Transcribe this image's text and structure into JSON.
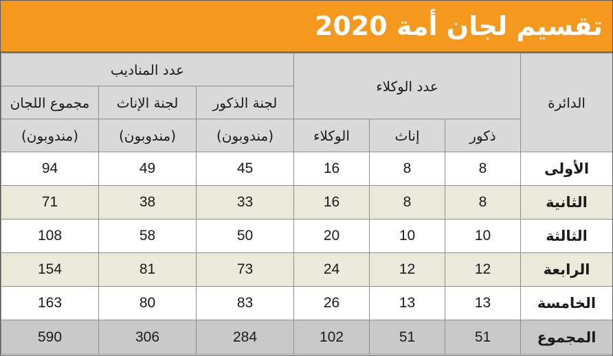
{
  "title": "تقسيم لجان أمة 2020",
  "headers": {
    "district": "الدائرة",
    "agents_group": "عدد الوكلاء",
    "delegates_group": "عدد المناديب",
    "males": "ذكور",
    "females": "إناث",
    "agents": "الوكلاء",
    "male_committee": "لجنة الذكور",
    "female_committee": "لجنة الإناث",
    "total_committees": "مجموع اللجان",
    "delegates_unit": "(مندوبون)"
  },
  "rows": [
    {
      "district": "الأولى",
      "males": "8",
      "females": "8",
      "agents": "16",
      "male_committee": "45",
      "female_committee": "49",
      "total": "94"
    },
    {
      "district": "الثانية",
      "males": "8",
      "females": "8",
      "agents": "16",
      "male_committee": "33",
      "female_committee": "38",
      "total": "71"
    },
    {
      "district": "الثالثة",
      "males": "10",
      "females": "10",
      "agents": "20",
      "male_committee": "50",
      "female_committee": "58",
      "total": "108"
    },
    {
      "district": "الرابعة",
      "males": "12",
      "females": "12",
      "agents": "24",
      "male_committee": "73",
      "female_committee": "81",
      "total": "154"
    },
    {
      "district": "الخامسة",
      "males": "13",
      "females": "13",
      "agents": "26",
      "male_committee": "83",
      "female_committee": "80",
      "total": "163"
    }
  ],
  "total_row": {
    "district": "المجموع",
    "males": "51",
    "females": "51",
    "agents": "102",
    "male_committee": "284",
    "female_committee": "306",
    "total": "590"
  },
  "colors": {
    "title_bg": "#f5991e",
    "header_bg": "#d9d9d9",
    "beige_row": "#ebe9d9",
    "total_row": "#c9c9c9"
  }
}
